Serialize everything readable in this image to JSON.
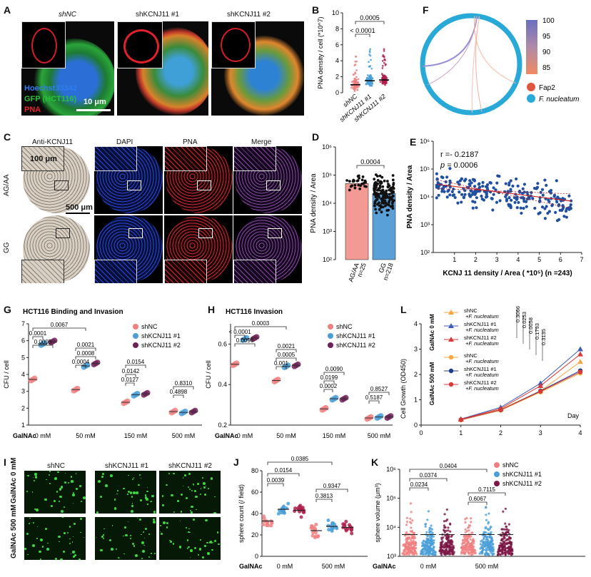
{
  "panels": {
    "A": "A",
    "B": "B",
    "C": "C",
    "D": "D",
    "E": "E",
    "F": "F",
    "G": "G",
    "H": "H",
    "I": "I",
    "J": "J",
    "K": "K",
    "L": "L"
  },
  "A": {
    "titles": [
      "shNC",
      "shKCNJ11 #1",
      "shKCNJ11 #2"
    ],
    "stains": [
      "Hoechst33342",
      "GFP (HCT116)",
      "PNA"
    ],
    "stain_colors": [
      "#2f7df0",
      "#27c23a",
      "#e8252a"
    ],
    "scale": "10 μm"
  },
  "C": {
    "headers": [
      "Anti-KCNJ11",
      "DAPI",
      "PNA",
      "Merge"
    ],
    "rows": [
      "AG/AA",
      "GG"
    ],
    "scale_small": "100 μm",
    "scale_big": "500 μm"
  },
  "I": {
    "headers": [
      "shNC",
      "shKCNJ11 #1",
      "shKCNJ11 #2"
    ],
    "rows": [
      "GalNAc 0 mM",
      "GalNAc 500 mM"
    ]
  },
  "chart_data": [
    {
      "id": "B",
      "type": "scatter",
      "ylabel": "PNA density / cell (*10^7)",
      "ylim": [
        0,
        10
      ],
      "yticks": [
        0,
        2,
        4,
        6,
        8,
        10
      ],
      "categories": [
        "shNC",
        "shKCNJ11 #1",
        "shKCNJ11 #2"
      ],
      "means": [
        1.0,
        1.5,
        1.6
      ],
      "colors": [
        "#f08080",
        "#4a9fd8",
        "#b0204c"
      ],
      "annotations": [
        {
          "from": 0,
          "to": 1,
          "text": "< 0.0001"
        },
        {
          "from": 0,
          "to": 2,
          "text": "0.0005"
        }
      ]
    },
    {
      "id": "D",
      "type": "bar",
      "ylabel": "PNA density / Area",
      "yscale": "log",
      "yticks": [
        "10²",
        "10³",
        "10⁴",
        "10⁵",
        "10⁶"
      ],
      "categories": [
        "AG/AA n=25",
        "GG n=218"
      ],
      "values_log10": [
        4.7,
        4.35
      ],
      "colors": [
        "#f49a94",
        "#5aa0d8"
      ],
      "annotations": [
        {
          "from": 0,
          "to": 1,
          "text": "0.0004"
        }
      ]
    },
    {
      "id": "E",
      "type": "scatter",
      "xlabel": "KCNJ 11 density / Area ( *10⁵) (n =243)",
      "ylabel": "PNA density / Area",
      "xlim": [
        0,
        7
      ],
      "xticks": [
        1,
        2,
        3,
        4,
        5,
        6,
        7
      ],
      "ylog_range": [
        2,
        6
      ],
      "yticks": [
        "10²",
        "10³",
        "10⁴",
        "10⁵",
        "10⁶"
      ],
      "r_text": "r =- 0.2187",
      "p_label": "p",
      "p_value": "= 0.0006",
      "fit": {
        "x0": 0.2,
        "y0_log10": 4.45,
        "x1": 6.5,
        "y1_log10": 3.85
      },
      "color": "#1f4fa0"
    },
    {
      "id": "F",
      "type": "chord",
      "legend_colorbar": [
        100,
        95,
        90,
        85
      ],
      "nodes": [
        "Fap2",
        "F. nucleatum"
      ],
      "node_colors": [
        "#e05540",
        "#28a9d8"
      ]
    },
    {
      "id": "G",
      "type": "scatter",
      "title": "HCT116    Binding and Invasion",
      "ylabel": "CFU / cell",
      "ylim": [
        1,
        7
      ],
      "yticks": [
        1,
        2,
        3,
        4,
        5,
        6,
        7
      ],
      "xlabel_prefix": "GalNAc",
      "groups": [
        "0 mM",
        "50 mM",
        "150 mM",
        "500 mM"
      ],
      "series": [
        {
          "name": "shNC",
          "values": [
            3.7,
            3.1,
            2.35,
            1.8
          ],
          "color": "#f08080"
        },
        {
          "name": "shKCNJ11 #1",
          "values": [
            5.8,
            4.5,
            2.8,
            1.75
          ],
          "color": "#4a9fd8"
        },
        {
          "name": "shKCNJ11 #2",
          "values": [
            5.95,
            4.65,
            2.85,
            1.8
          ],
          "color": "#6e2157"
        }
      ],
      "annotations": [
        "0.0067",
        "0.0001",
        "0.0005",
        "0.0021",
        "0.0008",
        "0.0004",
        "0.0154",
        "0.0142",
        "0.0127",
        "0.8310",
        "0.4898"
      ]
    },
    {
      "id": "H",
      "type": "scatter",
      "title": "HCT116    Invasion",
      "ylabel": "CFU / cell",
      "ylim": [
        0.2,
        0.7
      ],
      "yticks": [
        0.2,
        0.4,
        0.6
      ],
      "xlabel_prefix": "GalNAc",
      "groups": [
        "0 mM",
        "50 mM",
        "150 mM",
        "500 mM"
      ],
      "series": [
        {
          "name": "shNC",
          "values": [
            0.5,
            0.42,
            0.28,
            0.235
          ],
          "color": "#f08080"
        },
        {
          "name": "shKCNJ11 #1",
          "values": [
            0.625,
            0.49,
            0.33,
            0.24
          ],
          "color": "#4a9fd8"
        },
        {
          "name": "shKCNJ11 #2",
          "values": [
            0.63,
            0.495,
            0.33,
            0.24
          ],
          "color": "#6e2157"
        }
      ],
      "annotations": [
        "0.0003",
        "< 0.0001",
        "0.0096",
        "0.0021",
        "0.0005",
        "0.001",
        "0.0090",
        "0.0199",
        "0.0002",
        "0.8527",
        "0.5187"
      ]
    },
    {
      "id": "L",
      "type": "line",
      "ylabel": "Cell Growth (OD450)",
      "xlabel": "Day",
      "xlim": [
        0,
        4
      ],
      "ylim": [
        0,
        4
      ],
      "xticks": [
        0,
        1,
        2,
        3,
        4
      ],
      "yticks": [
        0,
        1,
        2,
        3,
        4
      ],
      "x": [
        1,
        2,
        3,
        4
      ],
      "series": [
        {
          "name": "shNC + F. nucleatum",
          "group": "GalNAc 0 mM",
          "values": [
            0.22,
            0.62,
            1.35,
            2.5
          ],
          "color": "#f5a742",
          "marker": "triangle"
        },
        {
          "name": "shKCNJ11 #1 +F. nucleatum",
          "group": "GalNAc 0 mM",
          "values": [
            0.24,
            0.7,
            1.65,
            3.0
          ],
          "color": "#3f5bb5",
          "marker": "triangle"
        },
        {
          "name": "shKCNJ11 #2 +F. nucleatum",
          "group": "GalNAc 0 mM",
          "values": [
            0.23,
            0.65,
            1.55,
            2.8
          ],
          "color": "#d83a3a",
          "marker": "triangle"
        },
        {
          "name": "shNC + F. nucleatum",
          "group": "GalNAc 500 mM",
          "values": [
            0.2,
            0.58,
            1.3,
            2.05
          ],
          "color": "#f5a742",
          "marker": "circle"
        },
        {
          "name": "shKCNJ11 #1 +F. nucleatum",
          "group": "GalNAc 500 mM",
          "values": [
            0.21,
            0.6,
            1.35,
            2.15
          ],
          "color": "#1f3a8a",
          "marker": "circle"
        },
        {
          "name": "shKCNJ11 #2 +F. nucleatum",
          "group": "GalNAc 500 mM",
          "values": [
            0.21,
            0.6,
            1.33,
            2.1
          ],
          "color": "#d83a3a",
          "marker": "circle"
        }
      ],
      "pvalues": [
        "0.3066",
        "0.0253",
        "0.0058",
        "0.1793",
        "0.3135"
      ]
    },
    {
      "id": "J",
      "type": "scatter",
      "ylabel": "sphere count  (/ field)",
      "ylim": [
        0,
        80
      ],
      "yticks": [
        0,
        20,
        40,
        60,
        80
      ],
      "xlabel_prefix": "GalNAc",
      "groups": [
        "0 mM",
        "500 mM"
      ],
      "series": [
        {
          "name": "shNC",
          "values": [
            33,
            24
          ],
          "color": "#f08080"
        },
        {
          "name": "shKCNJ11 #1",
          "values": [
            44,
            28
          ],
          "color": "#4a9fd8"
        },
        {
          "name": "shKCNJ11 #2",
          "values": [
            43,
            27
          ],
          "color": "#b0204c"
        }
      ],
      "annotations": [
        "0.0385",
        "0.0154",
        "0.0039",
        "0.9347",
        "0.3813"
      ]
    },
    {
      "id": "K",
      "type": "scatter",
      "ylabel": "sphere volume (μm³)",
      "yscale": "log",
      "yticks": [
        "10³",
        "10⁴",
        "10⁵",
        "10⁶"
      ],
      "xlabel_prefix": "GalNAc",
      "groups": [
        "0 mM",
        "500 mM"
      ],
      "series": [
        {
          "name": "shNC",
          "color": "#f08080"
        },
        {
          "name": "shKCNJ11 #1",
          "color": "#4a9fd8"
        },
        {
          "name": "shKCNJ11 #2",
          "color": "#7a1545"
        }
      ],
      "annotations": [
        "0.0404",
        "0.0374",
        "0.0234",
        "0.7115",
        "0.6067"
      ]
    }
  ]
}
